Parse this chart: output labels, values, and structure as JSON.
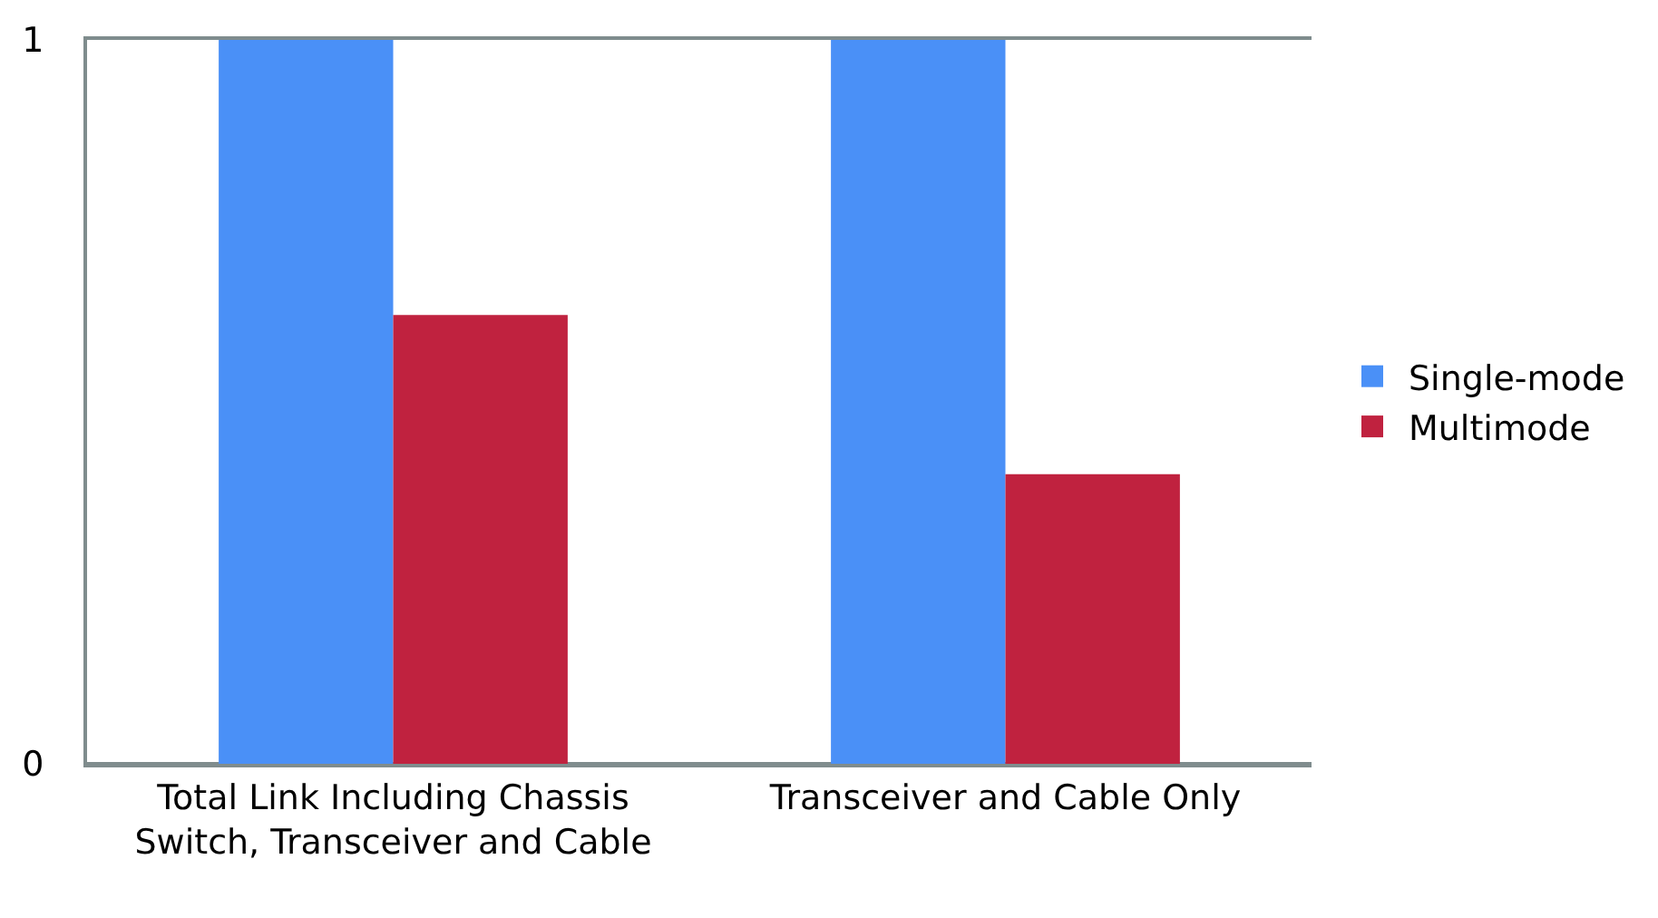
{
  "chart_data": {
    "type": "bar",
    "categories": [
      "Total Link Including Chassis\nSwitch, Transceiver and Cable",
      "Transceiver and Cable Only"
    ],
    "series": [
      {
        "name": "Single-mode",
        "color": "#4a90f7",
        "values": [
          1,
          1
        ]
      },
      {
        "name": "Multimode",
        "color": "#c0223f",
        "values": [
          0.62,
          0.4
        ]
      }
    ],
    "ylim": [
      0,
      1
    ],
    "yticks": [
      0,
      1
    ],
    "legend": "right"
  }
}
